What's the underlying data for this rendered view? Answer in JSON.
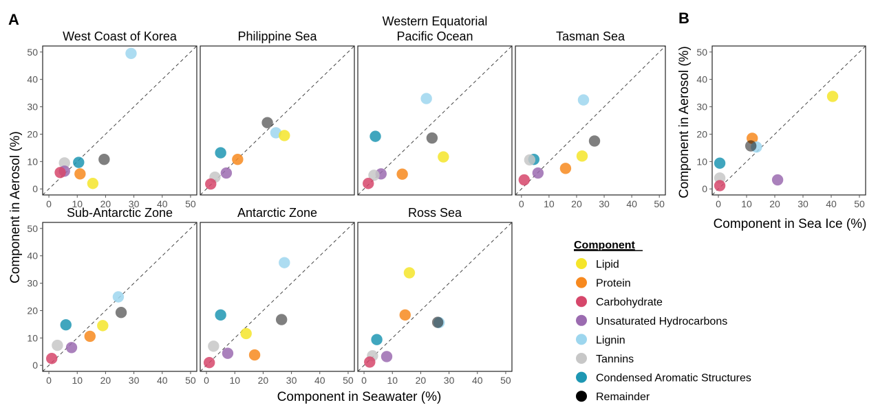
{
  "figure": {
    "panel_letters": [
      "A",
      "B"
    ],
    "xlabel_A": "Component in Seawater (%)",
    "ylabel_A": "Component in Aerosol (%)",
    "xlabel_B": "Component in Sea Ice (%)",
    "ylabel_B": "Component in Aerosol (%)"
  },
  "legend": {
    "title": "Component",
    "items": [
      {
        "label": "Lipid",
        "color": "#f5e52a"
      },
      {
        "label": "Protein",
        "color": "#f7891f"
      },
      {
        "label": "Carbohydrate",
        "color": "#d6476b"
      },
      {
        "label": "Unsaturated Hydrocarbons",
        "color": "#9b6bb0"
      },
      {
        "label": "Lignin",
        "color": "#9dd6ee"
      },
      {
        "label": "Tannins",
        "color": "#c7c7c7"
      },
      {
        "label": "Condensed Aromatic Structures",
        "color": "#1e97b3"
      },
      {
        "label": "Remainder",
        "color": "#000000"
      }
    ]
  },
  "chart_data": [
    {
      "type": "scatter",
      "panel": "A",
      "title": "West Coast of Korea",
      "xlim": [
        0,
        50
      ],
      "ylim": [
        0,
        50
      ],
      "xticks": [
        0,
        10,
        20,
        30,
        40,
        50
      ],
      "yticks": [
        0,
        10,
        20,
        30,
        40,
        50
      ],
      "points": [
        {
          "series": "Lignin",
          "x": 29,
          "y": 49.5
        },
        {
          "series": "Remainder",
          "x": 19.5,
          "y": 10.8
        },
        {
          "series": "Condensed Aromatic Structures",
          "x": 10.5,
          "y": 9.7
        },
        {
          "series": "Tannins",
          "x": 5.5,
          "y": 9.5
        },
        {
          "series": "Unsaturated Hydrocarbons",
          "x": 5.5,
          "y": 6.5
        },
        {
          "series": "Carbohydrate",
          "x": 4,
          "y": 6
        },
        {
          "series": "Protein",
          "x": 11,
          "y": 5.5
        },
        {
          "series": "Lipid",
          "x": 15.5,
          "y": 2
        }
      ]
    },
    {
      "type": "scatter",
      "panel": "A",
      "title": "Philippine Sea",
      "xlim": [
        0,
        50
      ],
      "ylim": [
        0,
        50
      ],
      "points": [
        {
          "series": "Remainder",
          "x": 21.5,
          "y": 24.2
        },
        {
          "series": "Lignin",
          "x": 24.5,
          "y": 20.5
        },
        {
          "series": "Lipid",
          "x": 27.5,
          "y": 19.5
        },
        {
          "series": "Condensed Aromatic Structures",
          "x": 5,
          "y": 13.2
        },
        {
          "series": "Protein",
          "x": 11,
          "y": 10.8
        },
        {
          "series": "Unsaturated Hydrocarbons",
          "x": 7,
          "y": 5.8
        },
        {
          "series": "Tannins",
          "x": 3,
          "y": 4.3
        },
        {
          "series": "Carbohydrate",
          "x": 1.5,
          "y": 1.8
        }
      ]
    },
    {
      "type": "scatter",
      "panel": "A",
      "title": "Western Equatorial\nPacific Ocean",
      "xlim": [
        0,
        50
      ],
      "ylim": [
        0,
        50
      ],
      "points": [
        {
          "series": "Lignin",
          "x": 22,
          "y": 33
        },
        {
          "series": "Remainder",
          "x": 24,
          "y": 18.6
        },
        {
          "series": "Condensed Aromatic Structures",
          "x": 4,
          "y": 19.2
        },
        {
          "series": "Lipid",
          "x": 28,
          "y": 11.7
        },
        {
          "series": "Unsaturated Hydrocarbons",
          "x": 6,
          "y": 5.5
        },
        {
          "series": "Protein",
          "x": 13.5,
          "y": 5.4
        },
        {
          "series": "Tannins",
          "x": 3.5,
          "y": 5
        },
        {
          "series": "Carbohydrate",
          "x": 1.5,
          "y": 2
        }
      ]
    },
    {
      "type": "scatter",
      "panel": "A",
      "title": "Tasman Sea",
      "xlim": [
        0,
        50
      ],
      "ylim": [
        0,
        50
      ],
      "xticks": [
        0,
        10,
        20,
        30,
        40,
        50
      ],
      "points": [
        {
          "series": "Lignin",
          "x": 22.5,
          "y": 32.5
        },
        {
          "series": "Remainder",
          "x": 26.5,
          "y": 17.5
        },
        {
          "series": "Lipid",
          "x": 22,
          "y": 12
        },
        {
          "series": "Condensed Aromatic Structures",
          "x": 4.5,
          "y": 10.8
        },
        {
          "series": "Tannins",
          "x": 3,
          "y": 10.6
        },
        {
          "series": "Protein",
          "x": 16,
          "y": 7.5
        },
        {
          "series": "Unsaturated Hydrocarbons",
          "x": 6,
          "y": 5.8
        },
        {
          "series": "Carbohydrate",
          "x": 1,
          "y": 3.3
        }
      ]
    },
    {
      "type": "scatter",
      "panel": "A",
      "title": "Sub-Antarctic Zone",
      "xlim": [
        0,
        50
      ],
      "ylim": [
        0,
        50
      ],
      "xticks": [
        0,
        10,
        20,
        30,
        40,
        50
      ],
      "yticks": [
        0,
        10,
        20,
        30,
        40,
        50
      ],
      "points": [
        {
          "series": "Lignin",
          "x": 24.5,
          "y": 25
        },
        {
          "series": "Remainder",
          "x": 25.5,
          "y": 19.3
        },
        {
          "series": "Condensed Aromatic Structures",
          "x": 6,
          "y": 14.8
        },
        {
          "series": "Lipid",
          "x": 19,
          "y": 14.5
        },
        {
          "series": "Protein",
          "x": 14.5,
          "y": 10.6
        },
        {
          "series": "Tannins",
          "x": 3,
          "y": 7.3
        },
        {
          "series": "Unsaturated Hydrocarbons",
          "x": 8,
          "y": 6.5
        },
        {
          "series": "Carbohydrate",
          "x": 1,
          "y": 2.5
        }
      ]
    },
    {
      "type": "scatter",
      "panel": "A",
      "title": "Antarctic Zone",
      "xlim": [
        0,
        50
      ],
      "ylim": [
        0,
        50
      ],
      "xticks": [
        0,
        10,
        20,
        30,
        40,
        50
      ],
      "points": [
        {
          "series": "Lignin",
          "x": 27.5,
          "y": 37.5
        },
        {
          "series": "Condensed Aromatic Structures",
          "x": 5,
          "y": 18.4
        },
        {
          "series": "Remainder",
          "x": 26.5,
          "y": 16.7
        },
        {
          "series": "Lipid",
          "x": 14,
          "y": 11.6
        },
        {
          "series": "Tannins",
          "x": 2.5,
          "y": 7
        },
        {
          "series": "Unsaturated Hydrocarbons",
          "x": 7.5,
          "y": 4.4
        },
        {
          "series": "Protein",
          "x": 17,
          "y": 3.8
        },
        {
          "series": "Carbohydrate",
          "x": 1,
          "y": 1
        }
      ]
    },
    {
      "type": "scatter",
      "panel": "A",
      "title": "Ross Sea",
      "xlim": [
        0,
        50
      ],
      "ylim": [
        0,
        50
      ],
      "xticks": [
        0,
        10,
        20,
        30,
        40,
        50
      ],
      "points": [
        {
          "series": "Lipid",
          "x": 16,
          "y": 33.8
        },
        {
          "series": "Protein",
          "x": 14.5,
          "y": 18.4
        },
        {
          "series": "Lignin",
          "x": 26.5,
          "y": 15.6
        },
        {
          "series": "Remainder",
          "x": 26,
          "y": 15.7
        },
        {
          "series": "Condensed Aromatic Structures",
          "x": 4.5,
          "y": 9.4
        },
        {
          "series": "Tannins",
          "x": 3,
          "y": 3.5
        },
        {
          "series": "Unsaturated Hydrocarbons",
          "x": 8,
          "y": 3.2
        },
        {
          "series": "Carbohydrate",
          "x": 2,
          "y": 1.2
        }
      ]
    },
    {
      "type": "scatter",
      "panel": "B",
      "title": "",
      "xlim": [
        0,
        50
      ],
      "ylim": [
        0,
        50
      ],
      "xticks": [
        0,
        10,
        20,
        30,
        40,
        50
      ],
      "yticks": [
        0,
        10,
        20,
        30,
        40,
        50
      ],
      "points": [
        {
          "series": "Lipid",
          "x": 40.5,
          "y": 33.8
        },
        {
          "series": "Protein",
          "x": 12,
          "y": 18.5
        },
        {
          "series": "Lignin",
          "x": 13.5,
          "y": 15.3
        },
        {
          "series": "Remainder",
          "x": 11.5,
          "y": 15.7
        },
        {
          "series": "Condensed Aromatic Structures",
          "x": 0.5,
          "y": 9.4
        },
        {
          "series": "Tannins",
          "x": 0.5,
          "y": 4
        },
        {
          "series": "Unsaturated Hydrocarbons",
          "x": 21,
          "y": 3.3
        },
        {
          "series": "Carbohydrate",
          "x": 0.5,
          "y": 1.2
        }
      ]
    }
  ]
}
